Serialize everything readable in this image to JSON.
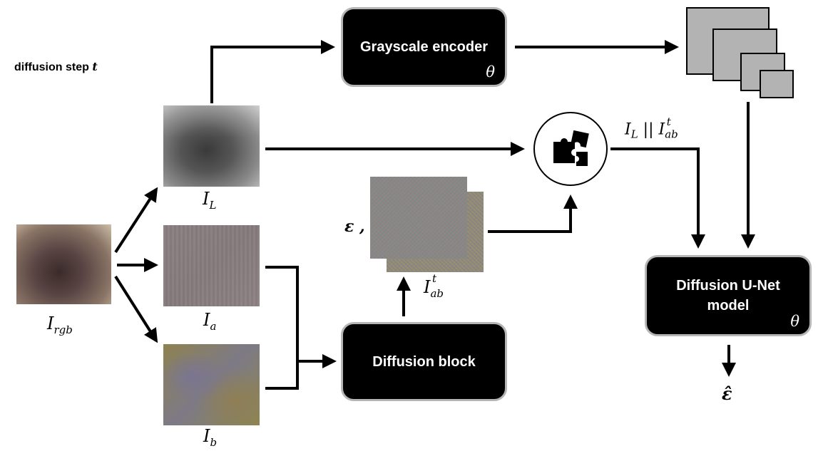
{
  "step_label": {
    "text": "diffusion step ",
    "var": "t"
  },
  "blocks": {
    "grayscale_encoder": {
      "title": "Grayscale encoder",
      "param": "θ"
    },
    "diffusion_block": {
      "title": "Diffusion block"
    },
    "unet": {
      "title_line1": "Diffusion U-Net",
      "title_line2": "model",
      "param": "θ"
    }
  },
  "labels": {
    "i_rgb": {
      "base": "I",
      "sub": "rgb"
    },
    "i_l": {
      "base": "I",
      "sub": "L"
    },
    "i_a": {
      "base": "I",
      "sub": "a"
    },
    "i_b": {
      "base": "I",
      "sub": "b"
    },
    "i_ab_t": {
      "base": "I",
      "sub": "ab",
      "sup": "t"
    },
    "epsilon": "ε ,",
    "concat": {
      "left_base": "I",
      "left_sub": "L",
      "sep": " || ",
      "right_base": "I",
      "right_sub": "ab",
      "right_sup": "t"
    },
    "eps_hat": "ε̂"
  },
  "icons": {
    "concat": "puzzle-icon"
  }
}
